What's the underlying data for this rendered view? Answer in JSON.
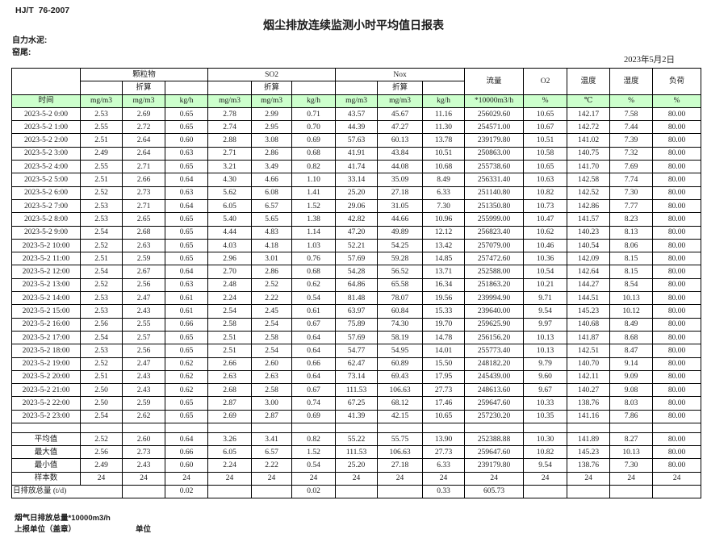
{
  "header": {
    "standard_code": "HJ/T  76-2007",
    "title": "烟尘排放连续监测小时平均值日报表",
    "company": "自力水泥:",
    "location": "窑尾:",
    "date": "2023年5月2日"
  },
  "table": {
    "group_row": [
      "颗粒物",
      "SO2",
      "Nox",
      "流量",
      "O2",
      "温度",
      "湿度",
      "负荷"
    ],
    "converted_label": "折算",
    "unit_row": [
      "时间",
      "mg/m3",
      "mg/m3",
      "kg/h",
      "mg/m3",
      "mg/m3",
      "kg/h",
      "mg/m3",
      "mg/m3",
      "kg/h",
      "*10000m3/h",
      "%",
      "℃",
      "%",
      "%"
    ],
    "rows": [
      [
        "2023-5-2 0:00",
        "2.53",
        "2.69",
        "0.65",
        "2.78",
        "2.99",
        "0.71",
        "43.57",
        "45.67",
        "11.16",
        "256029.60",
        "10.65",
        "142.17",
        "7.58",
        "80.00"
      ],
      [
        "2023-5-2 1:00",
        "2.55",
        "2.72",
        "0.65",
        "2.74",
        "2.95",
        "0.70",
        "44.39",
        "47.27",
        "11.30",
        "254571.00",
        "10.67",
        "142.72",
        "7.44",
        "80.00"
      ],
      [
        "2023-5-2 2:00",
        "2.51",
        "2.64",
        "0.60",
        "2.88",
        "3.08",
        "0.69",
        "57.63",
        "60.13",
        "13.78",
        "239179.80",
        "10.51",
        "141.02",
        "7.39",
        "80.00"
      ],
      [
        "2023-5-2 3:00",
        "2.49",
        "2.64",
        "0.63",
        "2.71",
        "2.86",
        "0.68",
        "41.91",
        "43.84",
        "10.51",
        "250863.00",
        "10.58",
        "140.75",
        "7.32",
        "80.00"
      ],
      [
        "2023-5-2 4:00",
        "2.55",
        "2.71",
        "0.65",
        "3.21",
        "3.49",
        "0.82",
        "41.74",
        "44.08",
        "10.68",
        "255738.60",
        "10.65",
        "141.70",
        "7.69",
        "80.00"
      ],
      [
        "2023-5-2 5:00",
        "2.51",
        "2.66",
        "0.64",
        "4.30",
        "4.66",
        "1.10",
        "33.14",
        "35.09",
        "8.49",
        "256331.40",
        "10.63",
        "142.58",
        "7.74",
        "80.00"
      ],
      [
        "2023-5-2 6:00",
        "2.52",
        "2.73",
        "0.63",
        "5.62",
        "6.08",
        "1.41",
        "25.20",
        "27.18",
        "6.33",
        "251140.80",
        "10.82",
        "142.52",
        "7.30",
        "80.00"
      ],
      [
        "2023-5-2 7:00",
        "2.53",
        "2.71",
        "0.64",
        "6.05",
        "6.57",
        "1.52",
        "29.06",
        "31.05",
        "7.30",
        "251350.80",
        "10.73",
        "142.86",
        "7.77",
        "80.00"
      ],
      [
        "2023-5-2 8:00",
        "2.53",
        "2.65",
        "0.65",
        "5.40",
        "5.65",
        "1.38",
        "42.82",
        "44.66",
        "10.96",
        "255999.00",
        "10.47",
        "141.57",
        "8.23",
        "80.00"
      ],
      [
        "2023-5-2 9:00",
        "2.54",
        "2.68",
        "0.65",
        "4.44",
        "4.83",
        "1.14",
        "47.20",
        "49.89",
        "12.12",
        "256823.40",
        "10.62",
        "140.23",
        "8.13",
        "80.00"
      ],
      [
        "2023-5-2 10:00",
        "2.52",
        "2.63",
        "0.65",
        "4.03",
        "4.18",
        "1.03",
        "52.21",
        "54.25",
        "13.42",
        "257079.00",
        "10.46",
        "140.54",
        "8.06",
        "80.00"
      ],
      [
        "2023-5-2 11:00",
        "2.51",
        "2.59",
        "0.65",
        "2.96",
        "3.01",
        "0.76",
        "57.69",
        "59.28",
        "14.85",
        "257472.60",
        "10.36",
        "142.09",
        "8.15",
        "80.00"
      ],
      [
        "2023-5-2 12:00",
        "2.54",
        "2.67",
        "0.64",
        "2.70",
        "2.86",
        "0.68",
        "54.28",
        "56.52",
        "13.71",
        "252588.00",
        "10.54",
        "142.64",
        "8.15",
        "80.00"
      ],
      [
        "2023-5-2 13:00",
        "2.52",
        "2.56",
        "0.63",
        "2.48",
        "2.52",
        "0.62",
        "64.86",
        "65.58",
        "16.34",
        "251863.20",
        "10.21",
        "144.27",
        "8.54",
        "80.00"
      ],
      [
        "2023-5-2 14:00",
        "2.53",
        "2.47",
        "0.61",
        "2.24",
        "2.22",
        "0.54",
        "81.48",
        "78.07",
        "19.56",
        "239994.90",
        "9.71",
        "144.51",
        "10.13",
        "80.00"
      ],
      [
        "2023-5-2 15:00",
        "2.53",
        "2.43",
        "0.61",
        "2.54",
        "2.45",
        "0.61",
        "63.97",
        "60.84",
        "15.33",
        "239640.00",
        "9.54",
        "145.23",
        "10.12",
        "80.00"
      ],
      [
        "2023-5-2 16:00",
        "2.56",
        "2.55",
        "0.66",
        "2.58",
        "2.54",
        "0.67",
        "75.89",
        "74.30",
        "19.70",
        "259625.90",
        "9.97",
        "140.68",
        "8.49",
        "80.00"
      ],
      [
        "2023-5-2 17:00",
        "2.54",
        "2.57",
        "0.65",
        "2.51",
        "2.58",
        "0.64",
        "57.69",
        "58.19",
        "14.78",
        "256156.20",
        "10.13",
        "141.87",
        "8.68",
        "80.00"
      ],
      [
        "2023-5-2 18:00",
        "2.53",
        "2.56",
        "0.65",
        "2.51",
        "2.54",
        "0.64",
        "54.77",
        "54.95",
        "14.01",
        "255773.40",
        "10.13",
        "142.51",
        "8.47",
        "80.00"
      ],
      [
        "2023-5-2 19:00",
        "2.52",
        "2.47",
        "0.62",
        "2.66",
        "2.60",
        "0.66",
        "62.47",
        "60.89",
        "15.50",
        "248182.20",
        "9.79",
        "140.70",
        "9.14",
        "80.00"
      ],
      [
        "2023-5-2 20:00",
        "2.51",
        "2.43",
        "0.62",
        "2.63",
        "2.63",
        "0.64",
        "73.14",
        "69.43",
        "17.95",
        "245439.00",
        "9.60",
        "142.11",
        "9.09",
        "80.00"
      ],
      [
        "2023-5-2 21:00",
        "2.50",
        "2.43",
        "0.62",
        "2.68",
        "2.58",
        "0.67",
        "111.53",
        "106.63",
        "27.73",
        "248613.60",
        "9.67",
        "140.27",
        "9.08",
        "80.00"
      ],
      [
        "2023-5-2 22:00",
        "2.50",
        "2.59",
        "0.65",
        "2.87",
        "3.00",
        "0.74",
        "67.25",
        "68.12",
        "17.46",
        "259647.60",
        "10.33",
        "138.76",
        "8.03",
        "80.00"
      ],
      [
        "2023-5-2 23:00",
        "2.54",
        "2.62",
        "0.65",
        "2.69",
        "2.87",
        "0.69",
        "41.39",
        "42.15",
        "10.65",
        "257230.20",
        "10.35",
        "141.16",
        "7.86",
        "80.00"
      ]
    ],
    "summary": [
      {
        "label": "平均值",
        "values": [
          "2.52",
          "2.60",
          "0.64",
          "3.26",
          "3.41",
          "0.82",
          "55.22",
          "55.75",
          "13.90",
          "252388.88",
          "10.30",
          "141.89",
          "8.27",
          "80.00"
        ]
      },
      {
        "label": "最大值",
        "values": [
          "2.56",
          "2.73",
          "0.66",
          "6.05",
          "6.57",
          "1.52",
          "111.53",
          "106.63",
          "27.73",
          "259647.60",
          "10.82",
          "145.23",
          "10.13",
          "80.00"
        ]
      },
      {
        "label": "最小值",
        "values": [
          "2.49",
          "2.43",
          "0.60",
          "2.24",
          "2.22",
          "0.54",
          "25.20",
          "27.18",
          "6.33",
          "239179.80",
          "9.54",
          "138.76",
          "7.30",
          "80.00"
        ]
      },
      {
        "label": "样本数",
        "values": [
          "24",
          "24",
          "24",
          "24",
          "24",
          "24",
          "24",
          "24",
          "24",
          "24",
          "24",
          "24",
          "24",
          "24"
        ]
      }
    ],
    "daily_total": {
      "label": "日排放总量 (t/d)",
      "values": [
        "",
        "0.02",
        "",
        "",
        "0.02",
        "",
        "",
        "0.33",
        "605.73",
        "",
        "",
        "",
        ""
      ]
    }
  },
  "footer": {
    "note": "烟气日排放总量*10000m3/h",
    "report_unit": "上报单位（盖章）",
    "unit_label": "单位"
  },
  "colors": {
    "unit_row_background": "#ccffcc",
    "border": "#000000"
  }
}
